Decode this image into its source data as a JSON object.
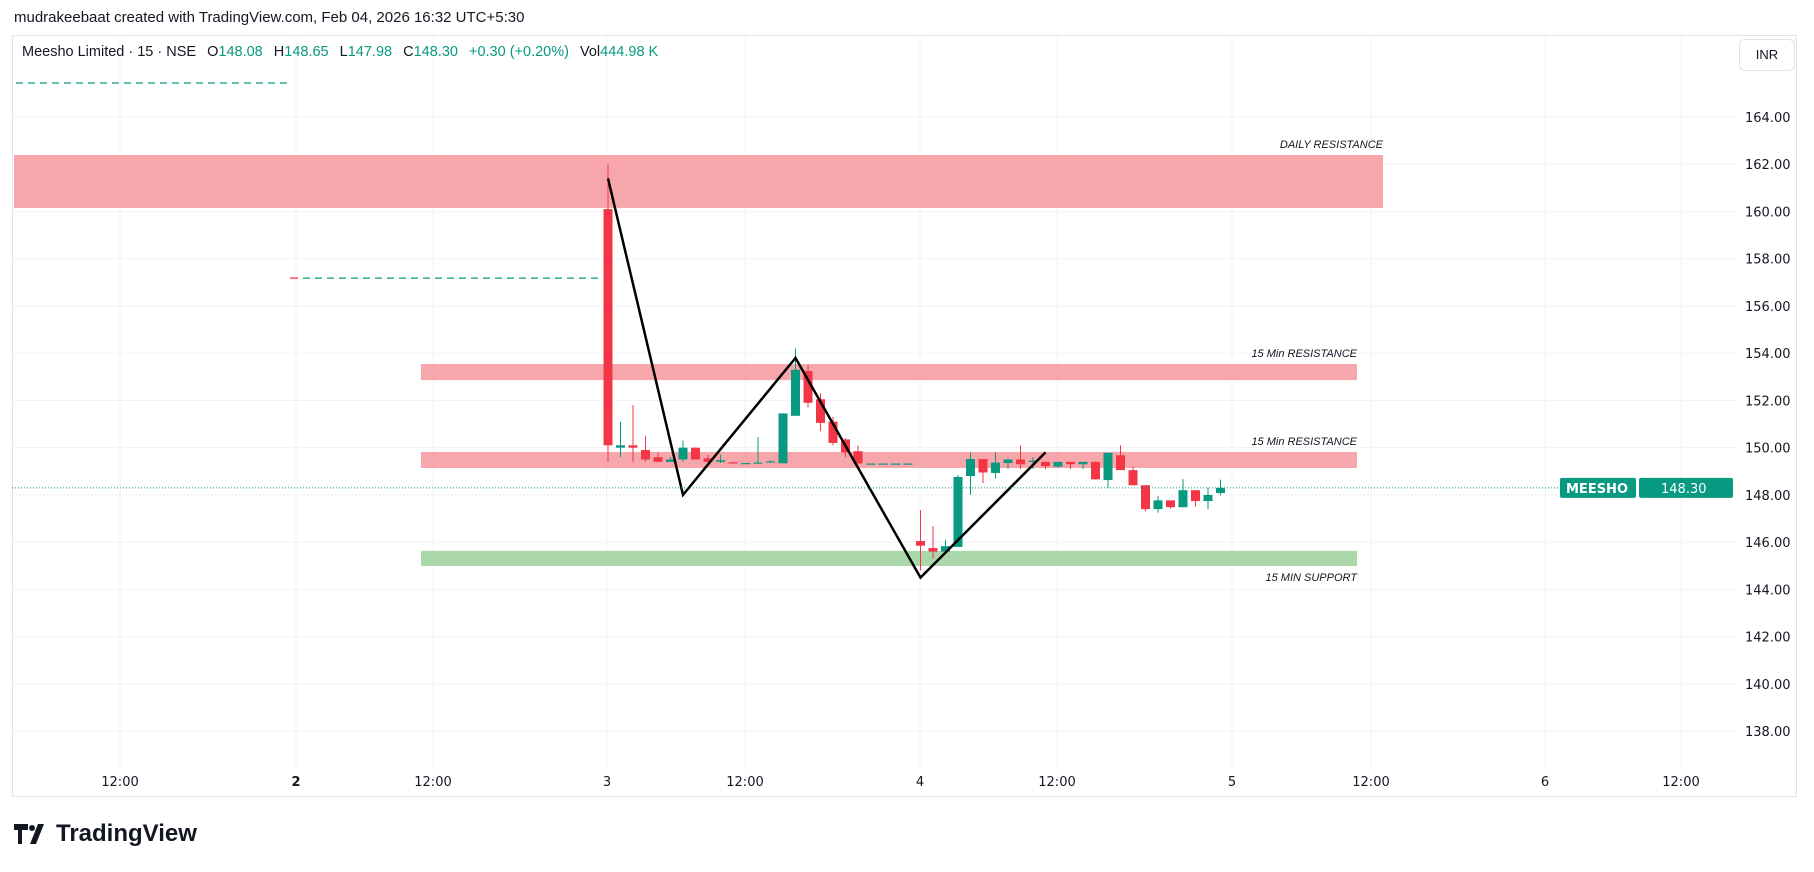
{
  "credit": "mudrakeebaat created with TradingView.com, Feb 04, 2026 16:32 UTC+5:30",
  "legend": {
    "symbol": "Meesho Limited · 15 · NSE",
    "o_label": "O",
    "o": "148.08",
    "h_label": "H",
    "h": "148.65",
    "l_label": "L",
    "l": "147.98",
    "c_label": "C",
    "c": "148.30",
    "change": "+0.30 (+0.20%)",
    "vol_label": "Vol",
    "vol": "444.98 K"
  },
  "currency_button": "INR",
  "price_tag": {
    "symbol": "MEESHO",
    "price": "148.30"
  },
  "logo_text": "TradingView",
  "colors": {
    "up": "#089981",
    "down": "#f23645",
    "resistance": "#f7a1a7",
    "support": "#a5d6a7",
    "trendline": "#000000"
  },
  "chart_data": {
    "type": "candlestick",
    "interval": "15",
    "ylim": [
      137,
      166
    ],
    "y_ticks": [
      "164.00",
      "162.00",
      "160.00",
      "158.00",
      "156.00",
      "154.00",
      "152.00",
      "150.00",
      "148.00",
      "146.00",
      "144.00",
      "142.00",
      "140.00",
      "138.00"
    ],
    "x_ticks": [
      {
        "label": "12:00",
        "bold": false
      },
      {
        "label": "2",
        "bold": true
      },
      {
        "label": "12:00",
        "bold": false
      },
      {
        "label": "3",
        "bold": false
      },
      {
        "label": "12:00",
        "bold": false
      },
      {
        "label": "4",
        "bold": false
      },
      {
        "label": "12:00",
        "bold": false
      },
      {
        "label": "5",
        "bold": false
      },
      {
        "label": "12:00",
        "bold": false
      },
      {
        "label": "6",
        "bold": false
      },
      {
        "label": "12:00",
        "bold": false
      }
    ],
    "prior_levels": [
      165.44,
      157.18
    ],
    "candles_ohlc": [
      [
        160.1,
        162.0,
        149.4,
        150.1
      ],
      [
        150.0,
        151.1,
        149.6,
        150.1
      ],
      [
        150.1,
        151.8,
        149.4,
        150.0
      ],
      [
        149.9,
        150.5,
        149.4,
        149.5
      ],
      [
        149.6,
        149.8,
        149.4,
        149.4
      ],
      [
        149.4,
        149.6,
        149.4,
        149.5
      ],
      [
        149.5,
        150.3,
        149.4,
        150.0
      ],
      [
        150.0,
        150.0,
        149.5,
        149.5
      ],
      [
        149.55,
        149.7,
        149.4,
        149.4
      ],
      [
        149.4,
        149.7,
        149.35,
        149.47
      ],
      [
        149.38,
        149.38,
        149.37,
        149.37
      ],
      [
        149.35,
        149.35,
        149.35,
        149.35
      ],
      [
        149.35,
        150.45,
        149.35,
        149.37
      ],
      [
        149.38,
        149.47,
        149.35,
        149.42
      ],
      [
        149.34,
        151.45,
        149.34,
        151.45
      ],
      [
        151.35,
        154.2,
        151.35,
        153.3
      ],
      [
        153.25,
        153.5,
        151.7,
        151.9
      ],
      [
        152.05,
        152.3,
        150.7,
        151.05
      ],
      [
        151.1,
        151.3,
        150.1,
        150.2
      ],
      [
        150.35,
        150.4,
        149.6,
        149.8
      ],
      [
        149.85,
        150.1,
        149.33,
        149.33
      ],
      [
        149.33,
        149.33,
        149.33,
        149.33
      ],
      [
        149.33,
        149.33,
        149.33,
        149.33
      ],
      [
        149.33,
        149.33,
        149.33,
        149.33
      ],
      [
        149.33,
        149.33,
        149.33,
        149.33
      ],
      [
        146.05,
        147.36,
        144.8,
        145.85
      ],
      [
        145.75,
        146.68,
        145.3,
        145.6
      ],
      [
        145.6,
        146.1,
        145.6,
        145.83
      ],
      [
        145.8,
        148.85,
        145.8,
        148.76
      ],
      [
        148.8,
        149.8,
        148.0,
        149.52
      ],
      [
        149.52,
        149.52,
        148.5,
        148.95
      ],
      [
        148.93,
        149.8,
        148.7,
        149.37
      ],
      [
        149.35,
        149.55,
        149.1,
        149.5
      ],
      [
        149.5,
        150.1,
        149.1,
        149.3
      ],
      [
        149.4,
        149.6,
        149.1,
        149.45
      ],
      [
        149.4,
        149.4,
        149.1,
        149.22
      ],
      [
        149.2,
        149.4,
        149.15,
        149.4
      ],
      [
        149.4,
        149.4,
        149.1,
        149.3
      ],
      [
        149.3,
        149.4,
        149.1,
        149.4
      ],
      [
        149.4,
        149.42,
        148.66,
        148.66
      ],
      [
        148.63,
        149.78,
        148.3,
        149.78
      ],
      [
        149.68,
        150.1,
        149.05,
        149.05
      ],
      [
        149.05,
        149.2,
        148.41,
        148.41
      ],
      [
        148.41,
        148.41,
        147.3,
        147.4
      ],
      [
        147.4,
        147.95,
        147.25,
        147.77
      ],
      [
        147.77,
        147.77,
        147.42,
        147.48
      ],
      [
        147.48,
        148.67,
        147.48,
        148.2
      ],
      [
        148.2,
        148.2,
        147.5,
        147.74
      ],
      [
        147.74,
        148.3,
        147.4,
        148.0
      ],
      [
        148.08,
        148.65,
        147.98,
        148.3
      ]
    ],
    "zones": [
      {
        "label": "DAILY RESISTANCE",
        "top": 162.39,
        "bottom": 160.15,
        "kind": "resistance"
      },
      {
        "label": "15 Min RESISTANCE",
        "top": 153.54,
        "bottom": 152.86,
        "kind": "resistance"
      },
      {
        "label": "15 Min RESISTANCE",
        "top": 149.82,
        "bottom": 149.14,
        "kind": "resistance"
      },
      {
        "label": "15 MIN SUPPORT",
        "top": 145.63,
        "bottom": 144.99,
        "kind": "support"
      }
    ],
    "zigzag_prices": [
      161.4,
      148.0,
      153.8,
      144.5,
      149.8
    ],
    "last_price": 148.3
  }
}
